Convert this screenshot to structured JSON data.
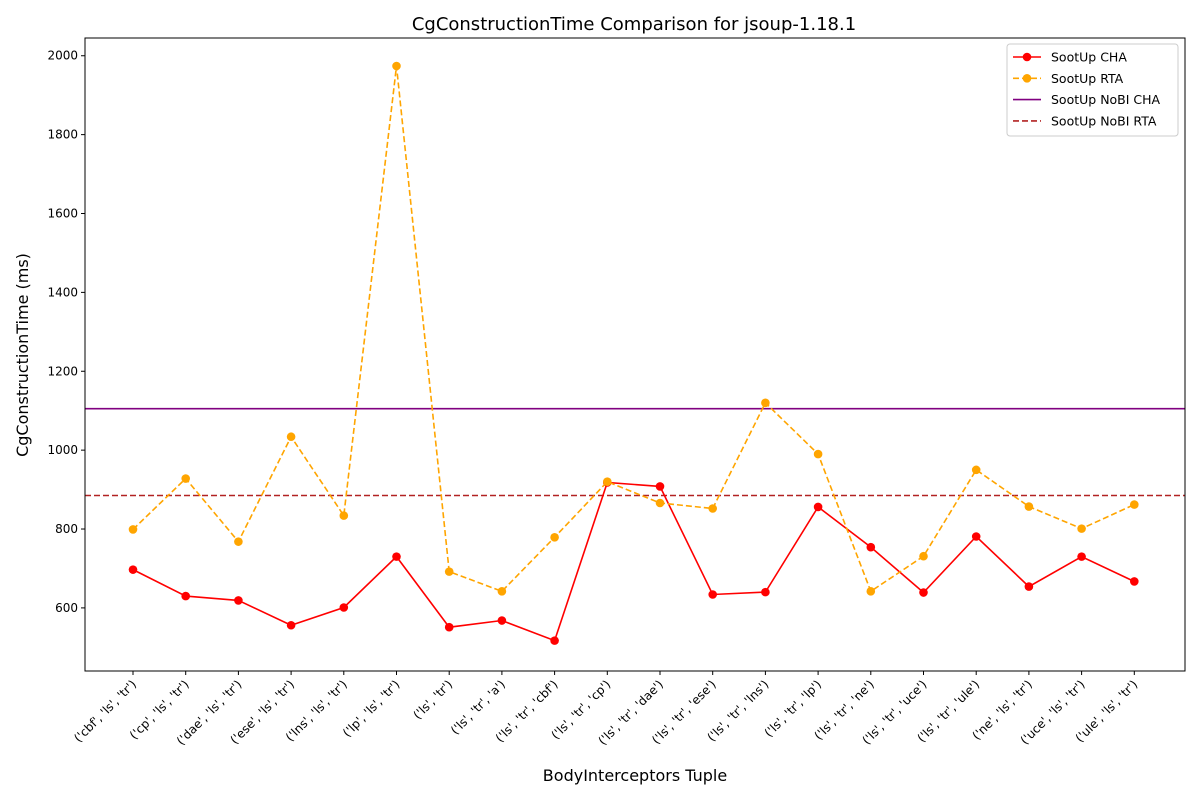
{
  "chart_data": {
    "type": "line",
    "title": "CgConstructionTime Comparison for jsoup-1.18.1",
    "xlabel": "BodyInterceptors Tuple",
    "ylabel": "CgConstructionTime (ms)",
    "ylim": [
      440,
      2045
    ],
    "yticks": [
      600,
      800,
      1000,
      1200,
      1400,
      1600,
      1800,
      2000
    ],
    "grid": false,
    "legend_position": "top-right",
    "categories": [
      "('cbf', 'ls', 'tr')",
      "('cp', 'ls', 'tr')",
      "('dae', 'ls', 'tr')",
      "('ese', 'ls', 'tr')",
      "('lns', 'ls', 'tr')",
      "('lp', 'ls', 'tr')",
      "('ls', 'tr')",
      "('ls', 'tr', 'a')",
      "('ls', 'tr', 'cbf')",
      "('ls', 'tr', 'cp')",
      "('ls', 'tr', 'dae')",
      "('ls', 'tr', 'ese')",
      "('ls', 'tr', 'lns')",
      "('ls', 'tr', 'lp')",
      "('ls', 'tr', 'ne')",
      "('ls', 'tr', 'uce')",
      "('ls', 'tr', 'ule')",
      "('ne', 'ls', 'tr')",
      "('uce', 'ls', 'tr')",
      "('ule', 'ls', 'tr')"
    ],
    "series": [
      {
        "name": "SootUp CHA",
        "color": "#ff0000",
        "style": "solid",
        "marker": "circle",
        "values": [
          697,
          630,
          619,
          556,
          601,
          730,
          551,
          568,
          517,
          918,
          908,
          634,
          640,
          856,
          754,
          639,
          781,
          654,
          730,
          667
        ]
      },
      {
        "name": "SootUp RTA",
        "color": "#ffa500",
        "style": "dashed",
        "marker": "circle",
        "values": [
          799,
          928,
          768,
          1034,
          834,
          1974,
          692,
          642,
          779,
          920,
          866,
          852,
          1120,
          990,
          642,
          731,
          950,
          857,
          801,
          862
        ]
      }
    ],
    "reference_lines": [
      {
        "name": "SootUp NoBI CHA",
        "color": "#800080",
        "style": "solid",
        "value": 1105
      },
      {
        "name": "SootUp NoBI RTA",
        "color": "#b22222",
        "style": "dashed",
        "value": 885
      }
    ]
  }
}
